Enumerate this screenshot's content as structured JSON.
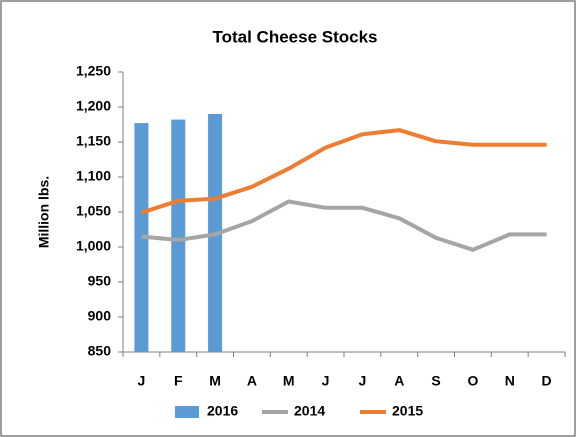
{
  "chart_data": {
    "type": "combo",
    "title": "Total Cheese Stocks",
    "y_label": "Million lbs.",
    "categories": [
      "J",
      "F",
      "M",
      "A",
      "M",
      "J",
      "J",
      "A",
      "S",
      "O",
      "N",
      "D"
    ],
    "series": [
      {
        "name": "2016",
        "kind": "bar",
        "color": "#5b9bd5",
        "values": [
          1177,
          1182,
          1190,
          null,
          null,
          null,
          null,
          null,
          null,
          null,
          null,
          null
        ]
      },
      {
        "name": "2014",
        "kind": "line",
        "color": "#a5a5a5",
        "values": [
          1015,
          1010,
          1018,
          1037,
          1065,
          1056,
          1056,
          1041,
          1013,
          996,
          1018,
          1018
        ]
      },
      {
        "name": "2015",
        "kind": "line",
        "color": "#ed7d31",
        "values": [
          1049,
          1066,
          1069,
          1086,
          1112,
          1142,
          1161,
          1167,
          1151,
          1146,
          1146,
          1146
        ]
      }
    ],
    "ylim": [
      850,
      1250
    ],
    "yticks": [
      850,
      900,
      950,
      {
        "value": 1000,
        "label": "1,000"
      },
      {
        "value": 1050,
        "label": "1,050"
      },
      {
        "value": 1100,
        "label": "1,100"
      },
      {
        "value": 1150,
        "label": "1,150"
      },
      {
        "value": 1200,
        "label": "1,200"
      },
      {
        "value": 1250,
        "label": "1,250"
      }
    ],
    "legend": "bottom",
    "grid": false
  }
}
